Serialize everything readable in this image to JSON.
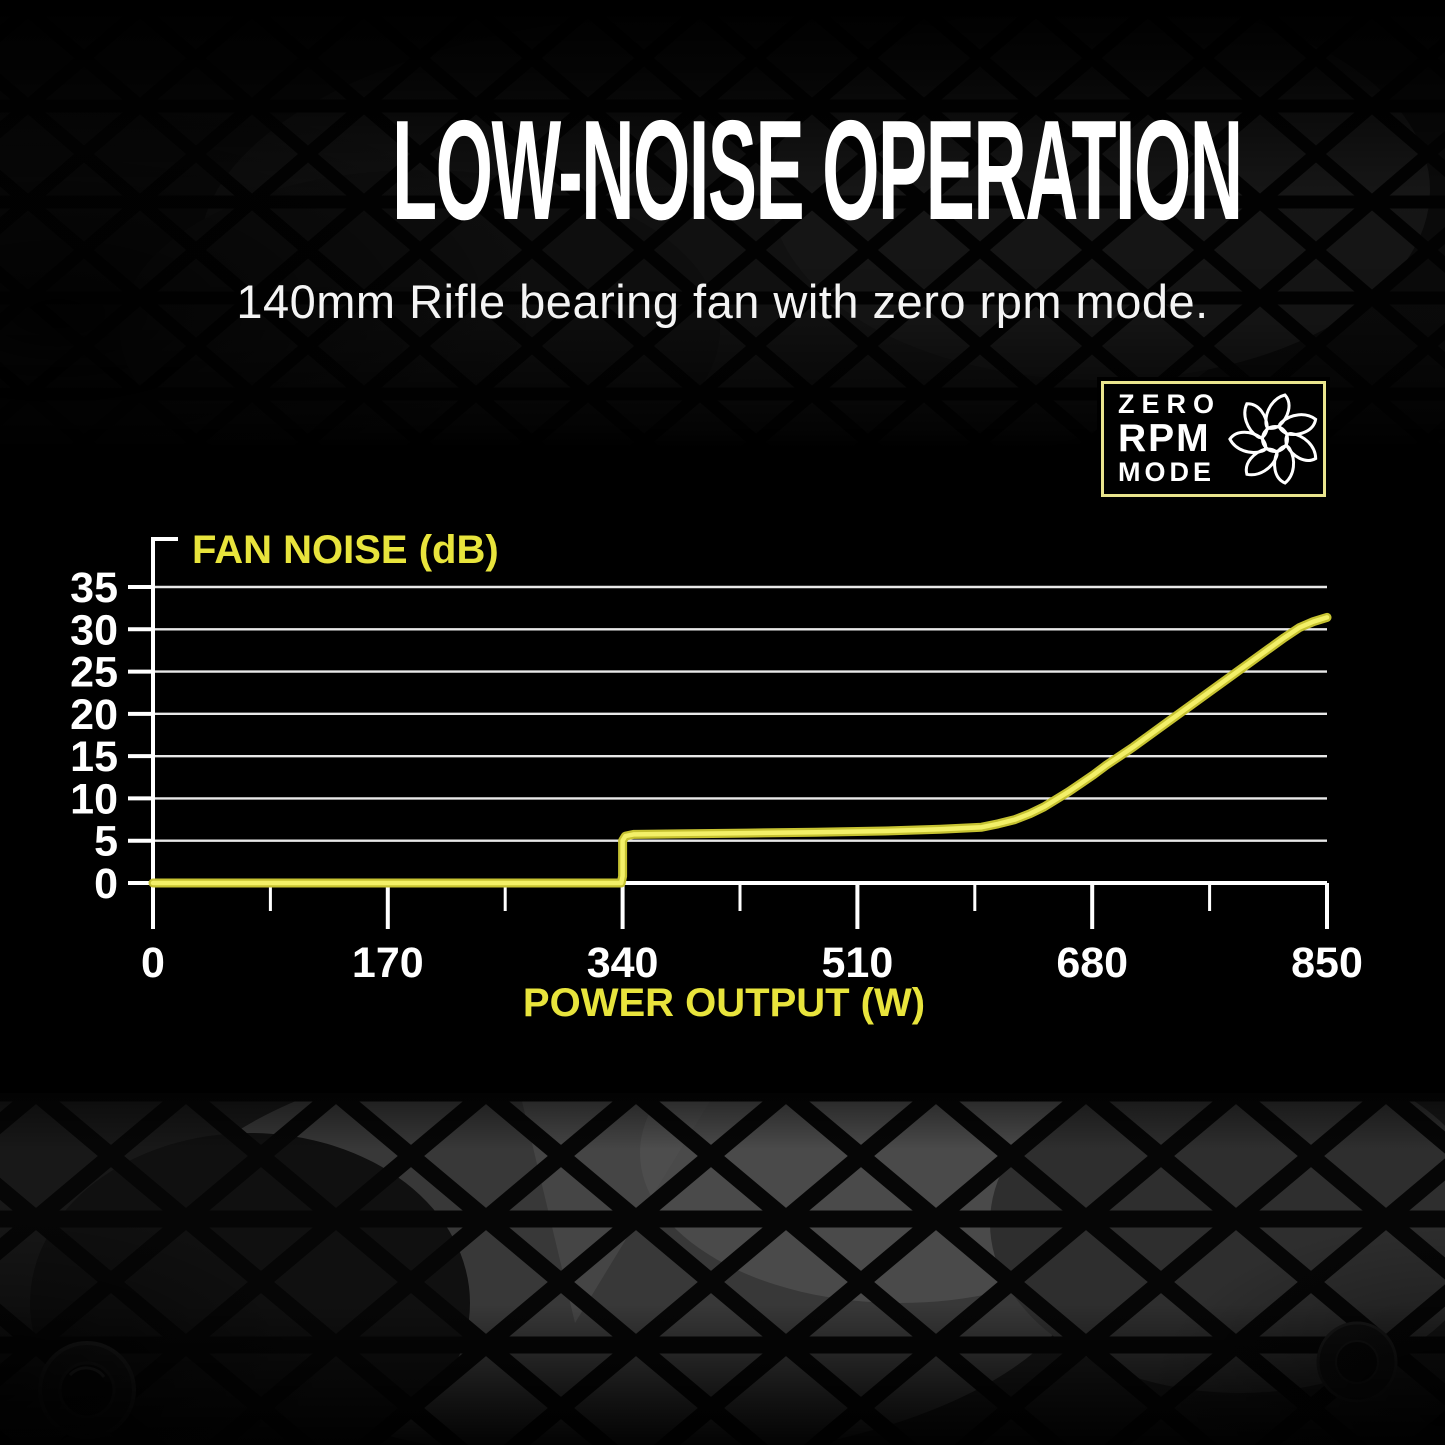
{
  "page": {
    "title": "LOW-NOISE OPERATION",
    "subtitle": "140mm Rifle bearing fan with zero rpm mode."
  },
  "badge": {
    "line1": "ZERO",
    "line2": "RPM",
    "line3": "MODE",
    "icon": "fan-icon",
    "border_color": "#e9e58d"
  },
  "colors": {
    "background": "#000000",
    "accent_yellow": "#e8e43c",
    "curve_core": "#f3f068",
    "curve_edge": "#c6c231",
    "grid": "#e8e8e8",
    "axis": "#ffffff",
    "tick_label": "#ffffff"
  },
  "chart_data": {
    "type": "line",
    "title": "FAN NOISE (dB)",
    "xlabel": "POWER OUTPUT (W)",
    "ylabel": "FAN NOISE (dB)",
    "xlim": [
      0,
      850
    ],
    "ylim": [
      0,
      35
    ],
    "x_ticks": [
      0,
      170,
      340,
      510,
      680,
      850
    ],
    "x_minor_ticks": [
      85,
      255,
      425,
      595,
      765
    ],
    "y_ticks": [
      0,
      5,
      10,
      15,
      20,
      25,
      30,
      35
    ],
    "grid": "horizontal gridlines on",
    "legend": "none",
    "series": [
      {
        "name": "Fan noise (dB) vs power output (W)",
        "points": [
          [
            0,
            0
          ],
          [
            339,
            0
          ],
          [
            340,
            0.8
          ],
          [
            340,
            5.0
          ],
          [
            342,
            5.55
          ],
          [
            348,
            5.75
          ],
          [
            380,
            5.8
          ],
          [
            430,
            5.9
          ],
          [
            480,
            6.0
          ],
          [
            530,
            6.15
          ],
          [
            570,
            6.35
          ],
          [
            600,
            6.6
          ],
          [
            612,
            7.0
          ],
          [
            624,
            7.5
          ],
          [
            635,
            8.2
          ],
          [
            645,
            9.0
          ],
          [
            654,
            9.9
          ],
          [
            663,
            10.8
          ],
          [
            672,
            11.8
          ],
          [
            681,
            12.8
          ],
          [
            690,
            13.9
          ],
          [
            700,
            15.0
          ],
          [
            710,
            16.1
          ],
          [
            720,
            17.3
          ],
          [
            731,
            18.6
          ],
          [
            742,
            19.9
          ],
          [
            753,
            21.2
          ],
          [
            764,
            22.5
          ],
          [
            775,
            23.8
          ],
          [
            786,
            25.1
          ],
          [
            797,
            26.4
          ],
          [
            808,
            27.7
          ],
          [
            819,
            29.0
          ],
          [
            830,
            30.2
          ],
          [
            840,
            30.9
          ],
          [
            850,
            31.4
          ]
        ]
      }
    ]
  }
}
